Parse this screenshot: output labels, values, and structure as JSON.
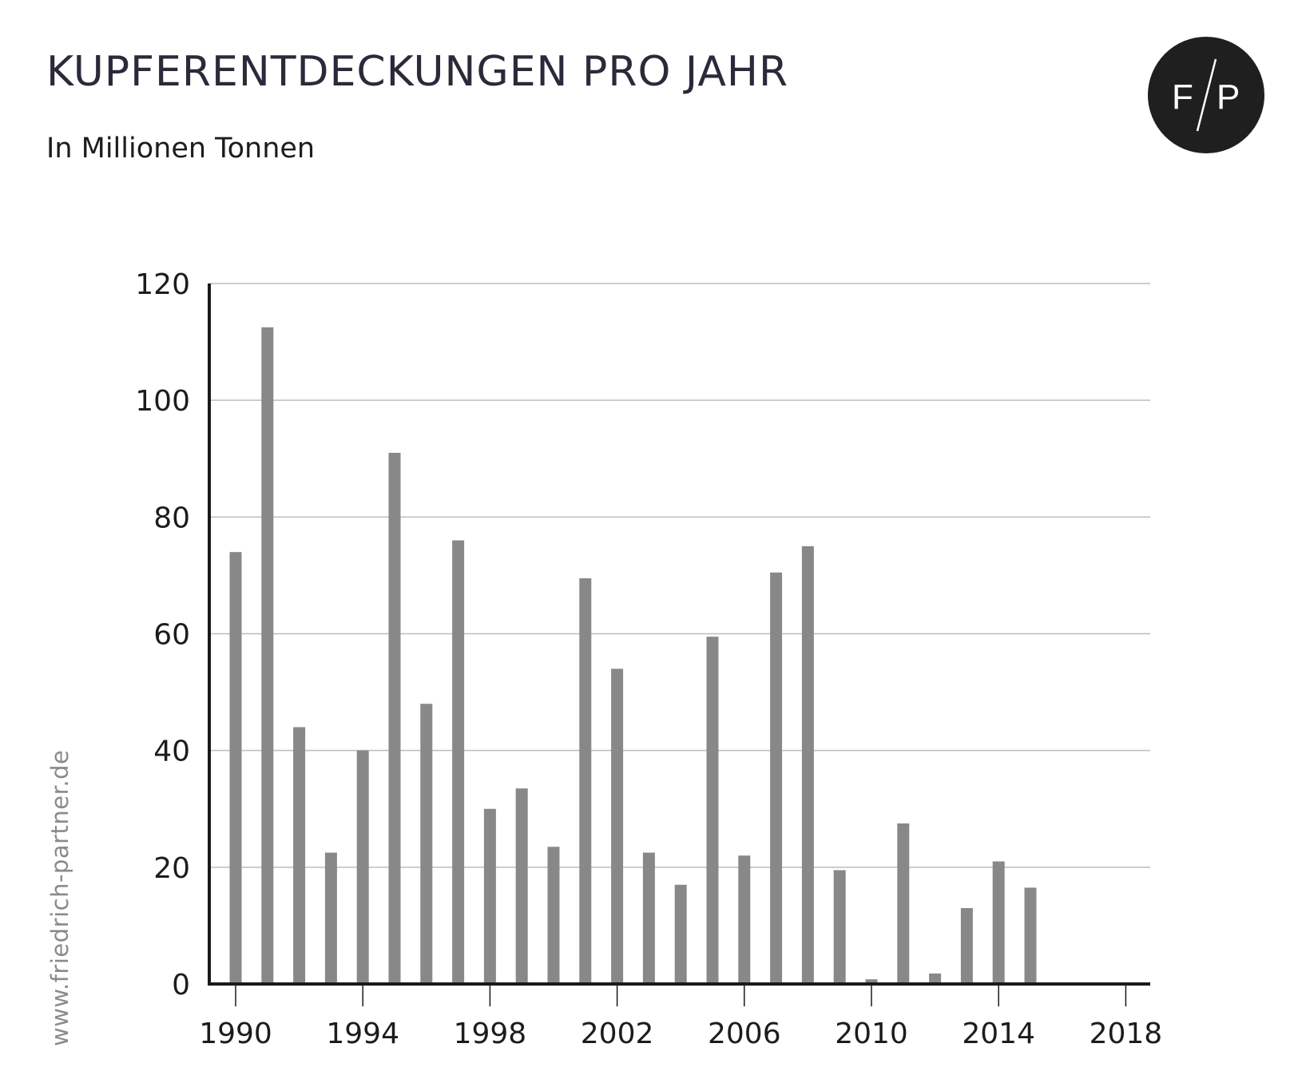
{
  "header": {
    "title": "KUPFERENTDECKUNGEN PRO JAHR",
    "subtitle": "In Millionen Tonnen"
  },
  "logo": {
    "text": "F/P",
    "icon": "fp-logo-icon",
    "background": "#1f1f1f",
    "foreground": "#ffffff"
  },
  "watermark": {
    "text": "www.friedrich-partner.de"
  },
  "colors": {
    "bar": "#888888",
    "axis": "#1a1a1a",
    "grid": "#bdbdbd"
  },
  "chart_data": {
    "type": "bar",
    "title": "KUPFERENTDECKUNGEN PRO JAHR",
    "subtitle": "In Millionen Tonnen",
    "xlabel": "",
    "ylabel": "",
    "ylim": [
      0,
      120
    ],
    "yticks": [
      0,
      20,
      40,
      60,
      80,
      100,
      120
    ],
    "xticks": [
      1990,
      1994,
      1998,
      2002,
      2006,
      2010,
      2014,
      2018
    ],
    "grid": true,
    "legend": "none",
    "categories": [
      1990,
      1991,
      1992,
      1993,
      1994,
      1995,
      1996,
      1997,
      1998,
      1999,
      2000,
      2001,
      2002,
      2003,
      2004,
      2005,
      2006,
      2007,
      2008,
      2009,
      2010,
      2011,
      2012,
      2013,
      2014,
      2015,
      2016,
      2017,
      2018
    ],
    "values": [
      74,
      112.5,
      44,
      22.5,
      40,
      91,
      48,
      76,
      30,
      33.5,
      23.5,
      69.5,
      54,
      22.5,
      17,
      59.5,
      22,
      70.5,
      75,
      19.5,
      0.8,
      27.5,
      1.8,
      13,
      21,
      16.5,
      0,
      0,
      0
    ]
  }
}
